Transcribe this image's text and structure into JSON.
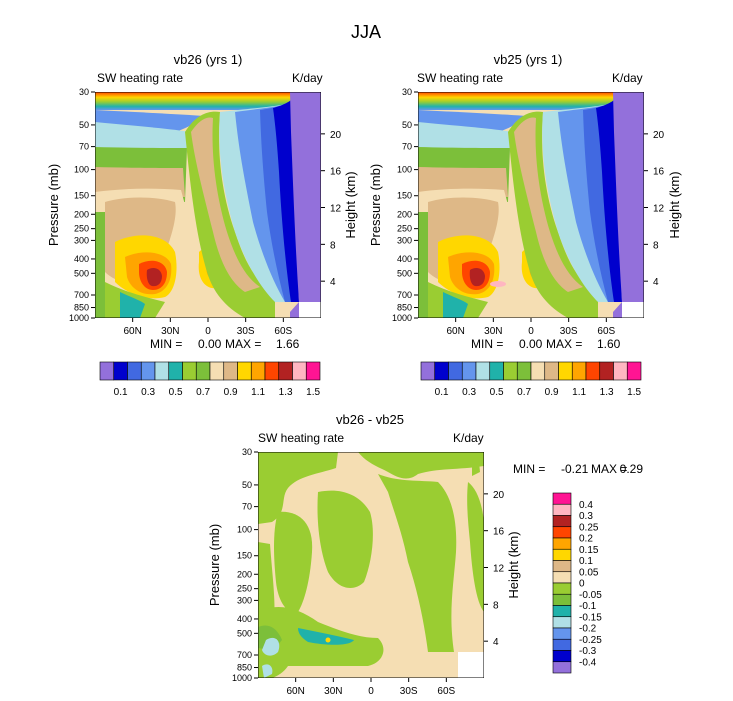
{
  "figure_title": "JJA",
  "chart_data": [
    {
      "type": "heatmap",
      "title": "vb26 (yrs 1)",
      "left_label": "SW heating rate",
      "right_label": "K/day",
      "ylabel": "Pressure (mb)",
      "ylabel_right": "Height (km)",
      "pressure_ticks": [
        "30",
        "50",
        "70",
        "100",
        "150",
        "200",
        "250",
        "300",
        "400",
        "500",
        "700",
        "850",
        "1000"
      ],
      "height_ticks": [
        "20",
        "16",
        "12",
        "8",
        "4"
      ],
      "lat_ticks": [
        "60N",
        "30N",
        "0",
        "30S",
        "60S"
      ],
      "min_label": "MIN =",
      "min_value": "0.00",
      "max_label": "MAX =",
      "max_value": "1.66",
      "legend_labels": [
        "0.1",
        "0.3",
        "0.5",
        "0.7",
        "0.9",
        "1.1",
        "1.3",
        "1.5"
      ],
      "colors": [
        "#9370db",
        "#0000cd",
        "#4169e1",
        "#6495ed",
        "#b0e0e6",
        "#20b2aa",
        "#9acd32",
        "#7cbf3a",
        "#f5deb3",
        "#deb887",
        "#ffd700",
        "#ffa500",
        "#ff4500",
        "#b22222",
        "#ffb6c1",
        "#ff1493"
      ]
    },
    {
      "type": "heatmap",
      "title": "vb25 (yrs 1)",
      "left_label": "SW heating rate",
      "right_label": "K/day",
      "ylabel": "Pressure (mb)",
      "ylabel_right": "Height (km)",
      "pressure_ticks": [
        "30",
        "50",
        "70",
        "100",
        "150",
        "200",
        "250",
        "300",
        "400",
        "500",
        "700",
        "850",
        "1000"
      ],
      "height_ticks": [
        "20",
        "16",
        "12",
        "8",
        "4"
      ],
      "lat_ticks": [
        "60N",
        "30N",
        "0",
        "30S",
        "60S"
      ],
      "min_label": "MIN =",
      "min_value": "0.00",
      "max_label": "MAX =",
      "max_value": "1.60",
      "legend_labels": [
        "0.1",
        "0.3",
        "0.5",
        "0.7",
        "0.9",
        "1.1",
        "1.3",
        "1.5"
      ]
    },
    {
      "type": "heatmap",
      "title": "vb26 - vb25",
      "left_label": "SW heating rate",
      "right_label": "K/day",
      "ylabel": "Pressure (mb)",
      "ylabel_right": "Height (km)",
      "pressure_ticks": [
        "30",
        "50",
        "70",
        "100",
        "150",
        "200",
        "250",
        "300",
        "400",
        "500",
        "700",
        "850",
        "1000"
      ],
      "height_ticks": [
        "20",
        "16",
        "12",
        "8",
        "4"
      ],
      "lat_ticks": [
        "60N",
        "30N",
        "0",
        "30S",
        "60S"
      ],
      "min_label": "MIN =",
      "min_value": "-0.21",
      "max_label": "MAX =",
      "max_value": "0.29",
      "legend_labels": [
        "0.4",
        "0.3",
        "0.25",
        "0.2",
        "0.15",
        "0.1",
        "0.05",
        "0",
        "-0.05",
        "-0.1",
        "-0.15",
        "-0.2",
        "-0.25",
        "-0.3",
        "-0.4"
      ],
      "diff_colors": [
        "#ff1493",
        "#ffb6c1",
        "#b22222",
        "#ff4500",
        "#ffa500",
        "#ffd700",
        "#deb887",
        "#f5deb3",
        "#9acd32",
        "#7cbf3a",
        "#20b2aa",
        "#b0e0e6",
        "#6495ed",
        "#4169e1",
        "#0000cd",
        "#9370db"
      ]
    }
  ]
}
